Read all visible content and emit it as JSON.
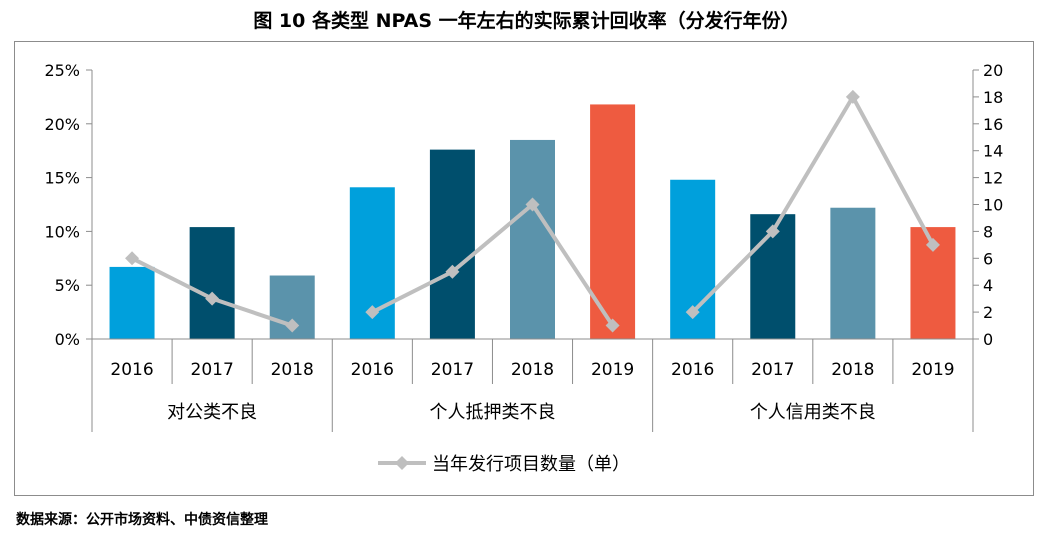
{
  "title": "图 10  各类型 NPAS 一年左右的实际累计回收率（分发行年份）",
  "source": "数据来源：公开市场资料、中债资信整理",
  "chart_data": {
    "type": "bar",
    "left_axis": {
      "ticks": [
        "0%",
        "5%",
        "10%",
        "15%",
        "20%",
        "25%"
      ],
      "ylim": [
        0,
        25
      ]
    },
    "right_axis": {
      "ticks": [
        "0",
        "2",
        "4",
        "6",
        "8",
        "10",
        "12",
        "14",
        "16",
        "18",
        "20"
      ],
      "ylim": [
        0,
        20
      ]
    },
    "groups": [
      {
        "name": "对公类不良",
        "years": [
          "2016",
          "2017",
          "2018"
        ]
      },
      {
        "name": "个人抵押类不良",
        "years": [
          "2016",
          "2017",
          "2018",
          "2019"
        ]
      },
      {
        "name": "个人信用类不良",
        "years": [
          "2016",
          "2017",
          "2018",
          "2019"
        ]
      }
    ],
    "bar_values": [
      6.7,
      10.4,
      5.9,
      14.1,
      17.6,
      18.5,
      21.8,
      14.8,
      11.6,
      12.2,
      10.4
    ],
    "bar_years": [
      "2016",
      "2017",
      "2018",
      "2016",
      "2017",
      "2018",
      "2019",
      "2016",
      "2017",
      "2018",
      "2019"
    ],
    "year_colors": {
      "2016": "#00a0dc",
      "2017": "#004f6d",
      "2018": "#5b93ab",
      "2019": "#ee5b40"
    },
    "line_series": {
      "name": "当年发行项目数量（单）",
      "color": "#bfbfbf",
      "values": [
        6,
        3,
        1,
        2,
        5,
        10,
        1,
        2,
        8,
        18,
        7
      ]
    },
    "legend_position": "bottom"
  }
}
